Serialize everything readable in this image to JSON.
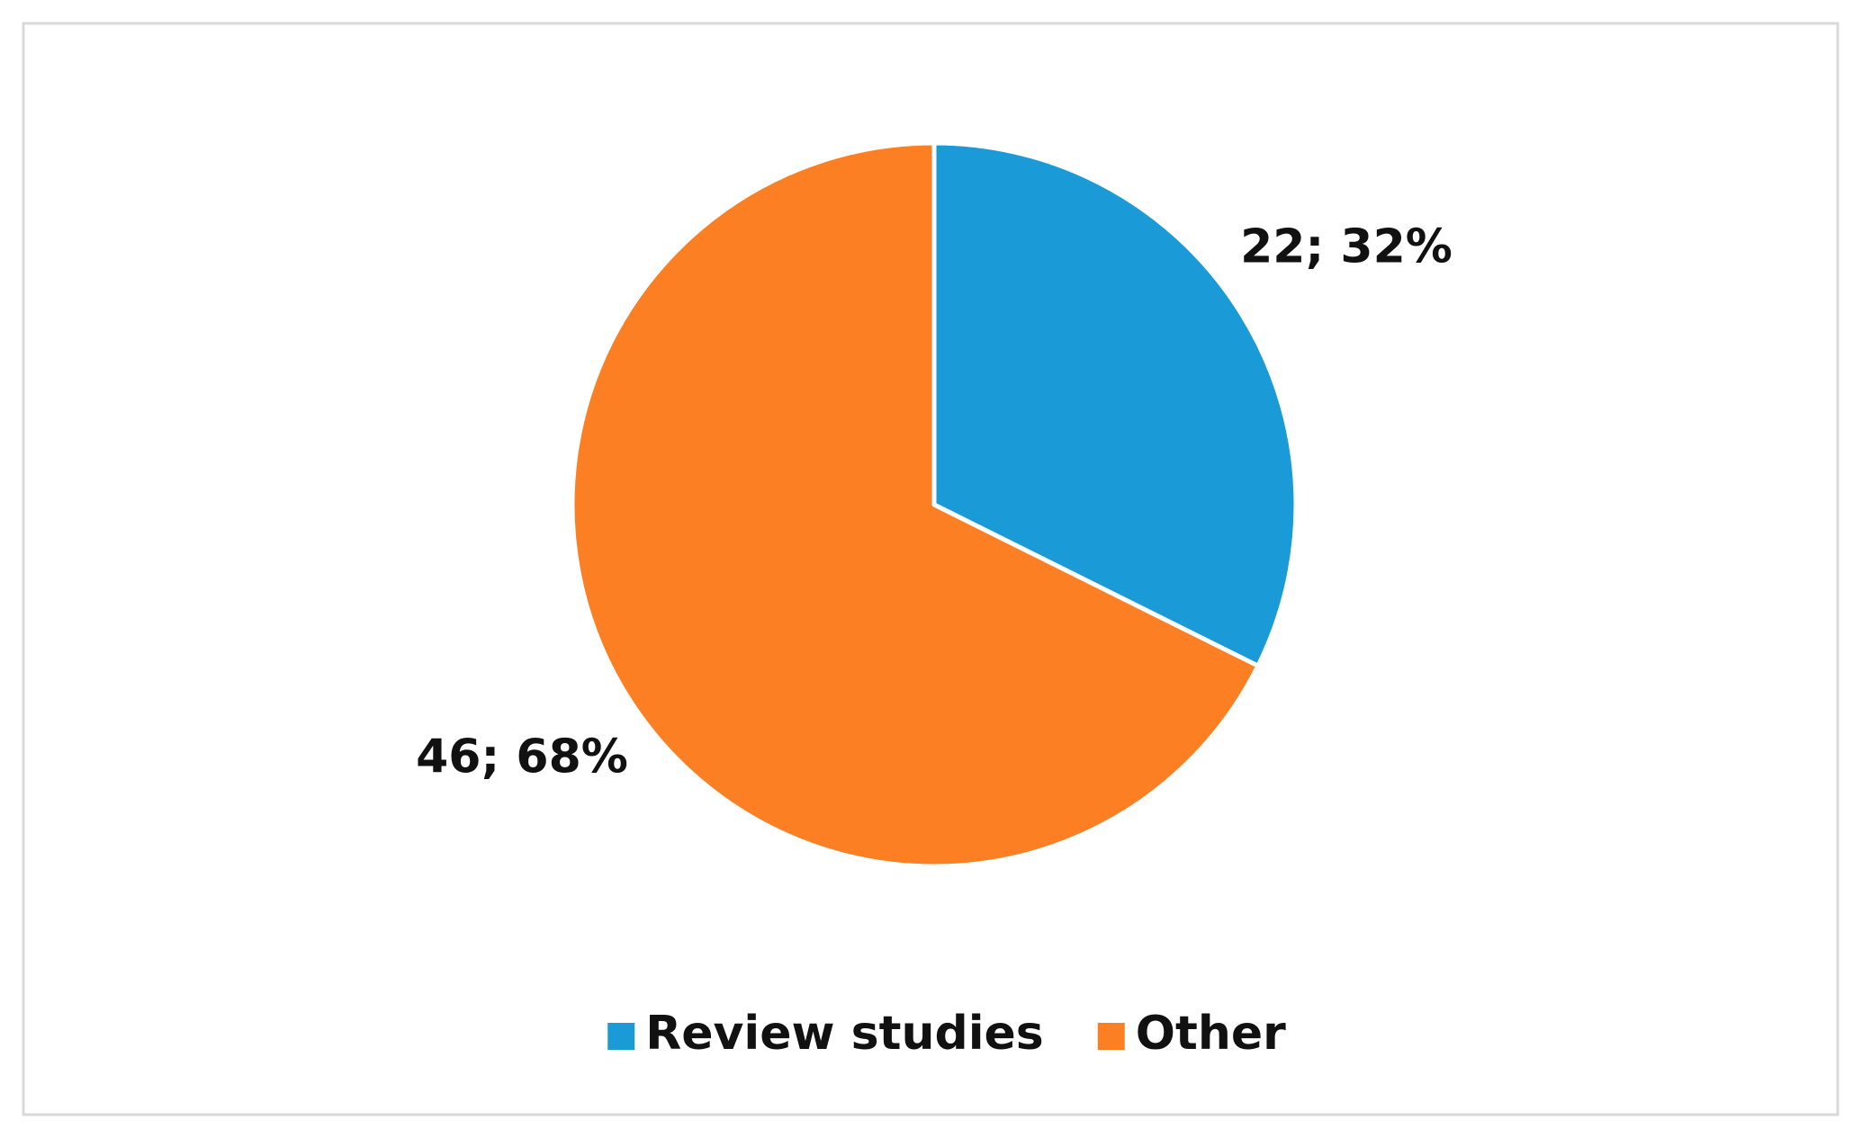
{
  "chart_data": {
    "type": "pie",
    "categories": [
      "Review studies",
      "Other"
    ],
    "values": [
      22,
      46
    ],
    "value_labels": [
      "22; 32%",
      "46; 68%"
    ],
    "colors": [
      "#1a9bd7",
      "#fd7f23"
    ],
    "legend": "bottom"
  }
}
